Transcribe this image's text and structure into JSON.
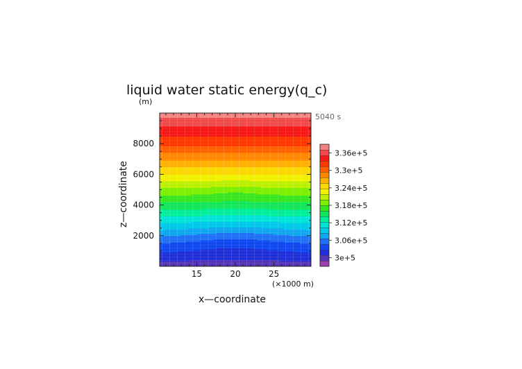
{
  "chart_data": {
    "type": "heatmap",
    "title": "liquid water static energy(q_c)",
    "time_label": "5040 s",
    "xlabel": "x—coordinate",
    "x_unit": "(×1000 m)",
    "ylabel": "z—coordinate",
    "y_unit": "(m)",
    "xlim": [
      10.2,
      29.8
    ],
    "ylim": [
      0,
      10000
    ],
    "x_ticks": [
      15,
      20,
      25
    ],
    "y_ticks": [
      2000,
      4000,
      6000,
      8000
    ],
    "colorbar": {
      "labels": [
        "3.36e+5",
        "3.3e+5",
        "3.24e+5",
        "3.18e+5",
        "3.12e+5",
        "3.06e+5",
        "3e+5"
      ],
      "label_values": [
        336000,
        330000,
        324000,
        318000,
        312000,
        306000,
        300000
      ],
      "min": 297000,
      "max": 339000,
      "colors": [
        "#9f3fb0",
        "#5535b8",
        "#2030d8",
        "#1048f0",
        "#2070f5",
        "#10a6f0",
        "#00c8ea",
        "#00e4d8",
        "#00ee9a",
        "#12e65a",
        "#38e620",
        "#7cf000",
        "#bcf000",
        "#f2f200",
        "#fcd800",
        "#ffb000",
        "#ff8800",
        "#ff6000",
        "#ff3800",
        "#f81818",
        "#f04a4a",
        "#f38383"
      ]
    },
    "profile": {
      "z": [
        0,
        500,
        1000,
        1500,
        2000,
        2500,
        3000,
        3500,
        4000,
        4500,
        5000,
        5500,
        6000,
        6500,
        7000,
        7500,
        8000,
        8500,
        9000,
        9500,
        10000
      ],
      "value": [
        299500,
        301500,
        303200,
        304900,
        307000,
        309200,
        311200,
        313300,
        315300,
        317300,
        319400,
        321500,
        323600,
        325700,
        327800,
        329800,
        331800,
        333300,
        334800,
        336400,
        338000
      ]
    }
  }
}
